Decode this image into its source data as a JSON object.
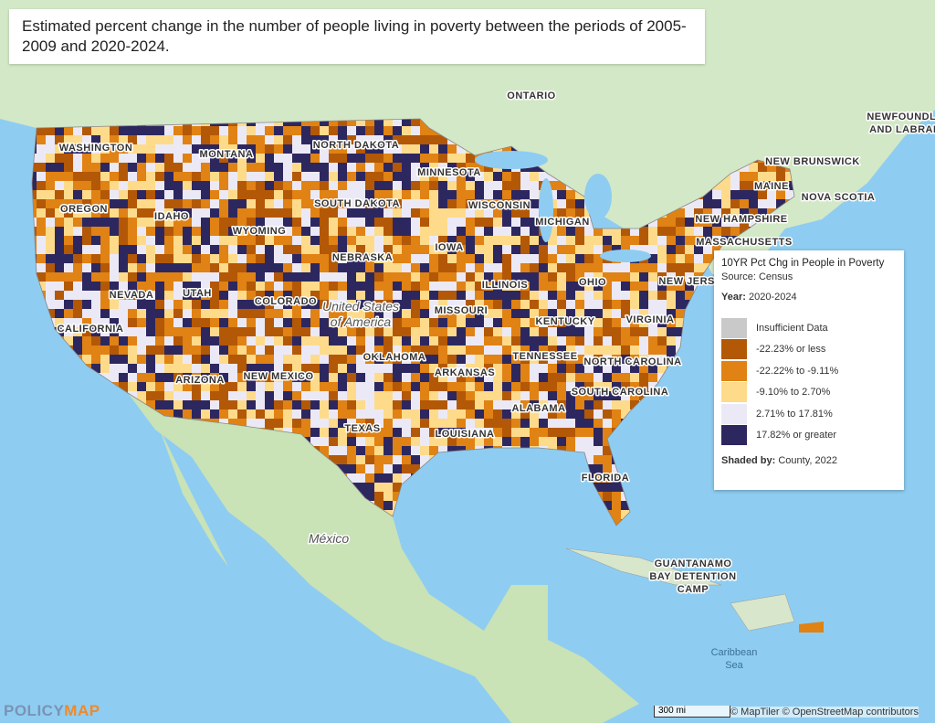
{
  "title": "Estimated percent change in the number of people living in poverty between the periods of 2005-2009 and 2020-2024.",
  "map_labels": [
    {
      "lines": [
        "ONTARIO"
      ]
    },
    {
      "lines": [
        "NEWFOUNDLAND",
        "AND LABRADOR"
      ]
    },
    {
      "lines": [
        "NEW BRUNSWICK"
      ]
    },
    {
      "lines": [
        "MAINE"
      ]
    },
    {
      "lines": [
        "NOVA SCOTIA"
      ]
    },
    {
      "lines": [
        "NEW HAMPSHIRE"
      ]
    },
    {
      "lines": [
        "MASSACHUSETTS"
      ]
    },
    {
      "lines": [
        "NEW JERSEY"
      ]
    },
    {
      "lines": [
        "WASHINGTON"
      ]
    },
    {
      "lines": [
        "MONTANA"
      ]
    },
    {
      "lines": [
        "NORTH DAKOTA"
      ]
    },
    {
      "lines": [
        "MINNESOTA"
      ]
    },
    {
      "lines": [
        "OREGON"
      ]
    },
    {
      "lines": [
        "IDAHO"
      ]
    },
    {
      "lines": [
        "SOUTH DAKOTA"
      ]
    },
    {
      "lines": [
        "WISCONSIN"
      ]
    },
    {
      "lines": [
        "MICHIGAN"
      ]
    },
    {
      "lines": [
        "WYOMING"
      ]
    },
    {
      "lines": [
        "IOWA"
      ]
    },
    {
      "lines": [
        "NEBRASKA"
      ]
    },
    {
      "lines": [
        "NEVADA"
      ]
    },
    {
      "lines": [
        "UTAH"
      ]
    },
    {
      "lines": [
        "COLORADO"
      ]
    },
    {
      "lines": [
        "ILLINOIS"
      ]
    },
    {
      "lines": [
        "OHIO"
      ]
    },
    {
      "lines": [
        "MISSOURI"
      ]
    },
    {
      "lines": [
        "KENTUCKY"
      ]
    },
    {
      "lines": [
        "VIRGINIA"
      ]
    },
    {
      "lines": [
        "CALIFORNIA"
      ]
    },
    {
      "lines": [
        "TENNESSEE"
      ]
    },
    {
      "lines": [
        "NORTH CAROLINA"
      ]
    },
    {
      "lines": [
        "OKLAHOMA"
      ]
    },
    {
      "lines": [
        "ARKANSAS"
      ]
    },
    {
      "lines": [
        "ARIZONA"
      ]
    },
    {
      "lines": [
        "NEW MEXICO"
      ]
    },
    {
      "lines": [
        "SOUTH CAROLINA"
      ]
    },
    {
      "lines": [
        "ALABAMA"
      ]
    },
    {
      "lines": [
        "TEXAS"
      ]
    },
    {
      "lines": [
        "LOUISIANA"
      ]
    },
    {
      "lines": [
        "FLORIDA"
      ]
    },
    {
      "lines": [
        "GUANTANAMO",
        "BAY DETENTION",
        "CAMP"
      ]
    },
    {
      "lines": [
        "México"
      ]
    },
    {
      "lines": [
        "United States",
        "of America"
      ]
    },
    {
      "lines": [
        "Caribbean",
        "Sea"
      ]
    }
  ],
  "legend": {
    "title": "10YR Pct Chg in People in Poverty",
    "source": "Source: Census",
    "year_label": "Year:",
    "year": "2020-2024",
    "items": [
      {
        "label": "Insufficient Data",
        "color": "#c9c9c9"
      },
      {
        "label": "-22.23% or less",
        "color": "#b35806"
      },
      {
        "label": "-22.22% to -9.11%",
        "color": "#e08214"
      },
      {
        "label": "-9.10% to 2.70%",
        "color": "#fedb8b"
      },
      {
        "label": "2.71% to 17.81%",
        "color": "#ece9f7"
      },
      {
        "label": "17.82% or greater",
        "color": "#2d2760"
      }
    ],
    "shaded_by_label": "Shaded by:",
    "shaded_by": "County, 2022"
  },
  "scale": "300 mi",
  "attribution": "© MapTiler © OpenStreetMap contributors",
  "logo": {
    "first": "POLICY",
    "second": "MAP"
  }
}
